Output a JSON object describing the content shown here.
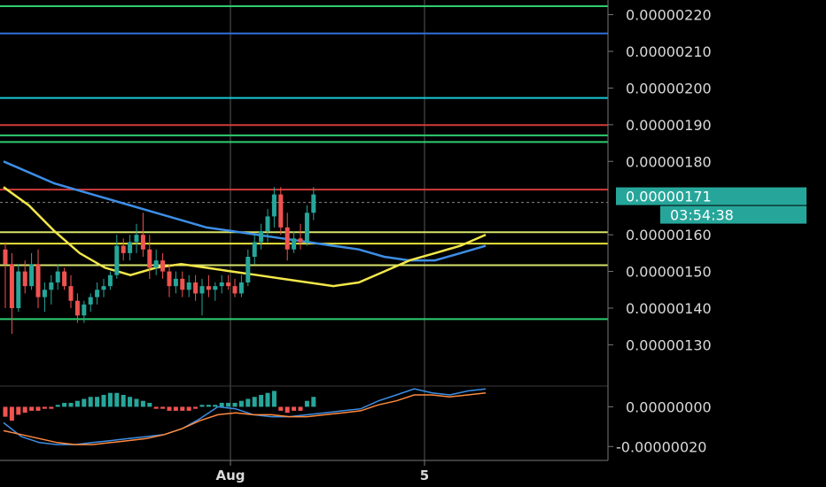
{
  "chart_data": [
    {
      "type": "candlestick",
      "title": "",
      "y_ticks": [
        "0.00000220",
        "0.00000210",
        "0.00000200",
        "0.00000190",
        "0.00000180",
        "0.00000160",
        "0.00000150",
        "0.00000140",
        "0.00000130"
      ],
      "ylim": [
        1.19e-06,
        2.24e-06
      ],
      "x_ticks": [
        "Aug",
        "5"
      ],
      "last_price": {
        "label": "0.00000171",
        "value": 1.71e-06,
        "countdown": "03:54:38"
      },
      "horizontal_levels": [
        {
          "value": 2.223e-06,
          "color": "#2ecc71"
        },
        {
          "value": 2.149e-06,
          "color": "#2f6fd6"
        },
        {
          "value": 1.973e-06,
          "color": "#18c8d8"
        },
        {
          "value": 1.899e-06,
          "color": "#d23a3a"
        },
        {
          "value": 1.871e-06,
          "color": "#2ecc71"
        },
        {
          "value": 1.853e-06,
          "color": "#2ecc71"
        },
        {
          "value": 1.723e-06,
          "color": "#d23a3a"
        },
        {
          "value": 1.607e-06,
          "color": "#d6e26a"
        },
        {
          "value": 1.576e-06,
          "color": "#e8e23a"
        },
        {
          "value": 1.517e-06,
          "color": "#d6e26a"
        },
        {
          "value": 1.37e-06,
          "color": "#2ecc71"
        }
      ],
      "moving_averages": [
        {
          "color": "#3d8ee6",
          "values": [
            1.8e-06,
            1.77e-06,
            1.74e-06,
            1.72e-06,
            1.7e-06,
            1.68e-06,
            1.66e-06,
            1.64e-06,
            1.62e-06,
            1.61e-06,
            1.6e-06,
            1.59e-06,
            1.58e-06,
            1.57e-06,
            1.56e-06,
            1.54e-06,
            1.53e-06,
            1.53e-06,
            1.55e-06,
            1.57e-06
          ]
        },
        {
          "color": "#f2e74a",
          "values": [
            1.73e-06,
            1.68e-06,
            1.61e-06,
            1.55e-06,
            1.51e-06,
            1.49e-06,
            1.51e-06,
            1.52e-06,
            1.51e-06,
            1.5e-06,
            1.49e-06,
            1.48e-06,
            1.47e-06,
            1.46e-06,
            1.47e-06,
            1.5e-06,
            1.53e-06,
            1.55e-06,
            1.57e-06,
            1.6e-06
          ]
        }
      ],
      "candles": [
        {
          "o": 1.56e-06,
          "h": 1.58e-06,
          "l": 1.4e-06,
          "c": 1.52e-06
        },
        {
          "o": 1.52e-06,
          "h": 1.55e-06,
          "l": 1.33e-06,
          "c": 1.4e-06
        },
        {
          "o": 1.4e-06,
          "h": 1.52e-06,
          "l": 1.39e-06,
          "c": 1.5e-06
        },
        {
          "o": 1.5e-06,
          "h": 1.53e-06,
          "l": 1.44e-06,
          "c": 1.46e-06
        },
        {
          "o": 1.46e-06,
          "h": 1.55e-06,
          "l": 1.45e-06,
          "c": 1.52e-06
        },
        {
          "o": 1.52e-06,
          "h": 1.56e-06,
          "l": 1.4e-06,
          "c": 1.43e-06
        },
        {
          "o": 1.43e-06,
          "h": 1.47e-06,
          "l": 1.39e-06,
          "c": 1.45e-06
        },
        {
          "o": 1.45e-06,
          "h": 1.49e-06,
          "l": 1.41e-06,
          "c": 1.47e-06
        },
        {
          "o": 1.47e-06,
          "h": 1.52e-06,
          "l": 1.45e-06,
          "c": 1.5e-06
        },
        {
          "o": 1.5e-06,
          "h": 1.51e-06,
          "l": 1.45e-06,
          "c": 1.46e-06
        },
        {
          "o": 1.46e-06,
          "h": 1.49e-06,
          "l": 1.4e-06,
          "c": 1.42e-06
        },
        {
          "o": 1.42e-06,
          "h": 1.44e-06,
          "l": 1.36e-06,
          "c": 1.38e-06
        },
        {
          "o": 1.38e-06,
          "h": 1.42e-06,
          "l": 1.36e-06,
          "c": 1.41e-06
        },
        {
          "o": 1.41e-06,
          "h": 1.44e-06,
          "l": 1.39e-06,
          "c": 1.43e-06
        },
        {
          "o": 1.43e-06,
          "h": 1.47e-06,
          "l": 1.41e-06,
          "c": 1.45e-06
        },
        {
          "o": 1.45e-06,
          "h": 1.48e-06,
          "l": 1.43e-06,
          "c": 1.46e-06
        },
        {
          "o": 1.46e-06,
          "h": 1.5e-06,
          "l": 1.45e-06,
          "c": 1.49e-06
        },
        {
          "o": 1.49e-06,
          "h": 1.6e-06,
          "l": 1.48e-06,
          "c": 1.57e-06
        },
        {
          "o": 1.57e-06,
          "h": 1.59e-06,
          "l": 1.53e-06,
          "c": 1.55e-06
        },
        {
          "o": 1.55e-06,
          "h": 1.6e-06,
          "l": 1.53e-06,
          "c": 1.58e-06
        },
        {
          "o": 1.58e-06,
          "h": 1.63e-06,
          "l": 1.55e-06,
          "c": 1.6e-06
        },
        {
          "o": 1.6e-06,
          "h": 1.66e-06,
          "l": 1.54e-06,
          "c": 1.56e-06
        },
        {
          "o": 1.56e-06,
          "h": 1.6e-06,
          "l": 1.48e-06,
          "c": 1.51e-06
        },
        {
          "o": 1.51e-06,
          "h": 1.56e-06,
          "l": 1.49e-06,
          "c": 1.53e-06
        },
        {
          "o": 1.53e-06,
          "h": 1.55e-06,
          "l": 1.48e-06,
          "c": 1.5e-06
        },
        {
          "o": 1.5e-06,
          "h": 1.52e-06,
          "l": 1.43e-06,
          "c": 1.46e-06
        },
        {
          "o": 1.46e-06,
          "h": 1.5e-06,
          "l": 1.44e-06,
          "c": 1.48e-06
        },
        {
          "o": 1.48e-06,
          "h": 1.5e-06,
          "l": 1.43e-06,
          "c": 1.45e-06
        },
        {
          "o": 1.45e-06,
          "h": 1.49e-06,
          "l": 1.43e-06,
          "c": 1.47e-06
        },
        {
          "o": 1.47e-06,
          "h": 1.49e-06,
          "l": 1.42e-06,
          "c": 1.44e-06
        },
        {
          "o": 1.44e-06,
          "h": 1.48e-06,
          "l": 1.38e-06,
          "c": 1.46e-06
        },
        {
          "o": 1.46e-06,
          "h": 1.49e-06,
          "l": 1.43e-06,
          "c": 1.45e-06
        },
        {
          "o": 1.45e-06,
          "h": 1.47e-06,
          "l": 1.42e-06,
          "c": 1.46e-06
        },
        {
          "o": 1.46e-06,
          "h": 1.49e-06,
          "l": 1.44e-06,
          "c": 1.47e-06
        },
        {
          "o": 1.47e-06,
          "h": 1.49e-06,
          "l": 1.45e-06,
          "c": 1.46e-06
        },
        {
          "o": 1.46e-06,
          "h": 1.48e-06,
          "l": 1.43e-06,
          "c": 1.44e-06
        },
        {
          "o": 1.44e-06,
          "h": 1.49e-06,
          "l": 1.43e-06,
          "c": 1.47e-06
        },
        {
          "o": 1.47e-06,
          "h": 1.56e-06,
          "l": 1.46e-06,
          "c": 1.54e-06
        },
        {
          "o": 1.54e-06,
          "h": 1.6e-06,
          "l": 1.52e-06,
          "c": 1.58e-06
        },
        {
          "o": 1.58e-06,
          "h": 1.63e-06,
          "l": 1.56e-06,
          "c": 1.61e-06
        },
        {
          "o": 1.61e-06,
          "h": 1.67e-06,
          "l": 1.58e-06,
          "c": 1.65e-06
        },
        {
          "o": 1.65e-06,
          "h": 1.73e-06,
          "l": 1.62e-06,
          "c": 1.71e-06
        },
        {
          "o": 1.71e-06,
          "h": 1.73e-06,
          "l": 1.6e-06,
          "c": 1.62e-06
        },
        {
          "o": 1.62e-06,
          "h": 1.66e-06,
          "l": 1.53e-06,
          "c": 1.56e-06
        },
        {
          "o": 1.56e-06,
          "h": 1.61e-06,
          "l": 1.55e-06,
          "c": 1.59e-06
        },
        {
          "o": 1.59e-06,
          "h": 1.63e-06,
          "l": 1.56e-06,
          "c": 1.58e-06
        },
        {
          "o": 1.58e-06,
          "h": 1.68e-06,
          "l": 1.57e-06,
          "c": 1.66e-06
        },
        {
          "o": 1.66e-06,
          "h": 1.73e-06,
          "l": 1.64e-06,
          "c": 1.71e-06
        }
      ]
    },
    {
      "type": "macd",
      "y_ticks": [
        "0.00000000",
        "-0.00000020"
      ],
      "ylim": [
        -2.7e-07,
        1e-07
      ],
      "histogram": [
        -0.05,
        -0.07,
        -0.04,
        -0.03,
        -0.02,
        -0.02,
        -0.01,
        -0.01,
        0.01,
        0.02,
        0.02,
        0.03,
        0.04,
        0.05,
        0.05,
        0.06,
        0.07,
        0.07,
        0.06,
        0.05,
        0.04,
        0.03,
        0.02,
        -0.01,
        -0.01,
        -0.02,
        -0.02,
        -0.02,
        -0.02,
        -0.01,
        0.01,
        0.01,
        0.01,
        0.02,
        0.02,
        0.02,
        0.03,
        0.04,
        0.05,
        0.06,
        0.07,
        0.08,
        -0.02,
        -0.03,
        -0.02,
        -0.02,
        0.03,
        0.05
      ],
      "macd_line": [
        -0.08,
        -0.15,
        -0.18,
        -0.19,
        -0.19,
        -0.18,
        -0.17,
        -0.16,
        -0.15,
        -0.14,
        -0.11,
        -0.06,
        0.0,
        -0.01,
        -0.04,
        -0.05,
        -0.05,
        -0.04,
        -0.03,
        -0.02,
        -0.01,
        0.03,
        0.06,
        0.09,
        0.07,
        0.06,
        0.08,
        0.09
      ],
      "signal_line": [
        -0.12,
        -0.14,
        -0.16,
        -0.18,
        -0.19,
        -0.19,
        -0.18,
        -0.17,
        -0.16,
        -0.14,
        -0.11,
        -0.07,
        -0.04,
        -0.03,
        -0.04,
        -0.04,
        -0.05,
        -0.05,
        -0.04,
        -0.03,
        -0.02,
        0.01,
        0.03,
        0.06,
        0.06,
        0.05,
        0.06,
        0.07
      ],
      "macd_color": "#3d8ee6",
      "signal_color": "#ff8a3d"
    }
  ],
  "colors": {
    "up": "#26a69a",
    "down": "#ef5350",
    "hist_up": "#26a69a",
    "hist_down": "#ef5350",
    "background": "#000000",
    "label_bg": "#26a69a"
  }
}
